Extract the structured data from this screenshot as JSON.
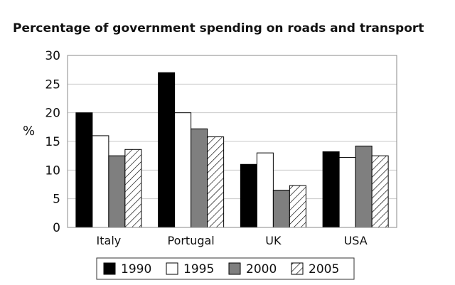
{
  "chart_data": {
    "type": "bar",
    "title": "Percentage of government spending on roads and transport",
    "xlabel": "",
    "ylabel": "%",
    "ylim": [
      0,
      30
    ],
    "yticks": [
      0,
      5,
      10,
      15,
      20,
      25,
      30
    ],
    "grid": true,
    "legend_position": "bottom",
    "categories": [
      "Italy",
      "Portugal",
      "UK",
      "USA"
    ],
    "series": [
      {
        "name": "1990",
        "fill": "black",
        "values": [
          20,
          27,
          11,
          13.2
        ]
      },
      {
        "name": "1995",
        "fill": "white",
        "values": [
          16,
          20,
          13,
          12.2
        ]
      },
      {
        "name": "2000",
        "fill": "gray",
        "values": [
          12.5,
          17.2,
          6.5,
          14.2
        ]
      },
      {
        "name": "2005",
        "fill": "hatched",
        "values": [
          13.6,
          15.8,
          7.3,
          12.5
        ]
      }
    ]
  },
  "colors": {
    "black": "#000000",
    "white": "#ffffff",
    "gray": "#7f7f7f",
    "grid": "#c8c8c8",
    "axis": "#888888"
  }
}
